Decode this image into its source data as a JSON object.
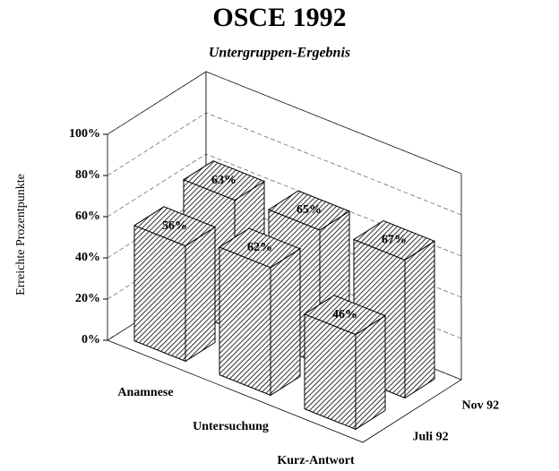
{
  "chart_data": {
    "type": "bar3d",
    "title": "OSCE 1992",
    "subtitle": "Untergruppen-Ergebnis",
    "y_label": "Erreichte Prozentpunkte",
    "categories": [
      "Anamnese",
      "Untersuchung",
      "Kurz-Antwort"
    ],
    "series": [
      {
        "name": "Juli 92",
        "color": "#000000",
        "values": [
          56,
          62,
          46
        ],
        "value_labels": [
          "56%",
          "62%",
          "46%"
        ]
      },
      {
        "name": "Nov 92",
        "color": "#000000",
        "values": [
          63,
          65,
          67
        ],
        "value_labels": [
          "63%",
          "65%",
          "67%"
        ]
      }
    ],
    "ylim": [
      0,
      100
    ],
    "yticks": [
      {
        "value": 0,
        "label": "0%"
      },
      {
        "value": 20,
        "label": "20%"
      },
      {
        "value": 40,
        "label": "40%"
      },
      {
        "value": 60,
        "label": "60%"
      },
      {
        "value": 80,
        "label": "80%"
      },
      {
        "value": 100,
        "label": "100%"
      }
    ],
    "grid": true
  }
}
